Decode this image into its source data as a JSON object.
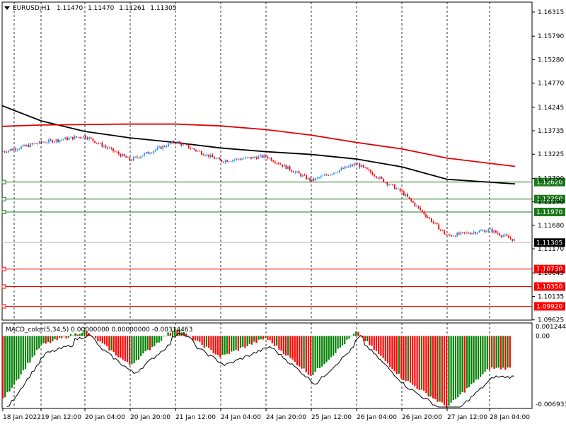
{
  "title": "EURUSD,H1",
  "ohlc": [
    "1.11470",
    "1.11470",
    "1.11261",
    "1.11305"
  ],
  "menu_icon": "triangle-down-icon",
  "colors": {
    "bull": "#1e90ff",
    "bear": "#ff0000",
    "ma_fast": "#000000",
    "ma_slow": "#e00000",
    "green_level": "#1a7a1a",
    "red_level": "#ff0000",
    "hist_up": "#008000",
    "hist_down": "#ff0000"
  },
  "price_axis": {
    "ticks": [
      "1.16315",
      "1.15790",
      "1.15280",
      "1.14770",
      "1.14245",
      "1.13735",
      "1.13225",
      "1.12700",
      "1.12190",
      "1.11680",
      "1.11170",
      "1.10645",
      "1.10135",
      "1.09625"
    ],
    "current_price": "1.11305",
    "ymin": 1.0962,
    "ymax": 1.1653
  },
  "levels": [
    {
      "label": "1.12620",
      "value": 1.1262,
      "kind": "support-green"
    },
    {
      "label": "1.12250",
      "value": 1.1225,
      "kind": "support-green"
    },
    {
      "label": "1.11970",
      "value": 1.1197,
      "kind": "support-green"
    },
    {
      "label": "1.10730",
      "value": 1.1073,
      "kind": "target-red"
    },
    {
      "label": "1.10350",
      "value": 1.1035,
      "kind": "target-red"
    },
    {
      "label": "1.09920",
      "value": 1.0992,
      "kind": "target-red"
    }
  ],
  "indicator": {
    "label": "MACD_color(5,34,5) 0.00000000 0.00000000 -0.00314463",
    "ticks": [
      "0.0012441",
      "0.00",
      "-0.006933"
    ],
    "vmax": 0.0012441,
    "vmin": -0.006933
  },
  "time_axis": [
    "18 Jan 2022",
    "19 Jan 12:00",
    "20 Jan 04:00",
    "20 Jan 20:00",
    "21 Jan 12:00",
    "24 Jan 04:00",
    "24 Jan 20:00",
    "25 Jan 12:00",
    "26 Jan 04:00",
    "26 Jan 20:00",
    "27 Jan 12:00",
    "28 Jan 04:00"
  ],
  "chart_data": [
    {
      "type": "candlestick",
      "symbol": "EURUSD",
      "timeframe": "H1",
      "ylim": [
        1.0962,
        1.1653
      ],
      "close_path": [
        {
          "t": "18 Jan 2022",
          "close": 1.1328
        },
        {
          "t": "19 Jan 12:00",
          "close": 1.1348
        },
        {
          "t": "20 Jan 04:00",
          "close": 1.1362
        },
        {
          "t": "20 Jan 20:00",
          "close": 1.131
        },
        {
          "t": "21 Jan 12:00",
          "close": 1.135
        },
        {
          "t": "24 Jan 04:00",
          "close": 1.1308
        },
        {
          "t": "24 Jan 20:00",
          "close": 1.1318
        },
        {
          "t": "25 Jan 12:00",
          "close": 1.1265
        },
        {
          "t": "26 Jan 04:00",
          "close": 1.1302
        },
        {
          "t": "26 Jan 20:00",
          "close": 1.124
        },
        {
          "t": "27 Jan 12:00",
          "close": 1.1145
        },
        {
          "t": "28 Jan 04:00",
          "close": 1.1158
        }
      ],
      "moving_averages": [
        {
          "color": "black",
          "values": [
            1.1428,
            1.1395,
            1.1372,
            1.1358,
            1.1348,
            1.1336,
            1.1328,
            1.1322,
            1.1312,
            1.1295,
            1.1268,
            1.1258
          ]
        },
        {
          "color": "red",
          "values": [
            1.1383,
            1.1386,
            1.1387,
            1.1388,
            1.1388,
            1.1384,
            1.1376,
            1.1364,
            1.1348,
            1.1334,
            1.1314,
            1.1296
          ]
        }
      ]
    },
    {
      "type": "bar",
      "name": "MACD_color(5,34,5)",
      "categories": [
        "18 Jan 2022",
        "19 Jan 12:00",
        "20 Jan 04:00",
        "20 Jan 20:00",
        "21 Jan 12:00",
        "24 Jan 04:00",
        "24 Jan 20:00",
        "25 Jan 12:00",
        "26 Jan 04:00",
        "26 Jan 20:00",
        "27 Jan 12:00",
        "28 Jan 04:00"
      ],
      "values": [
        -0.0062,
        -0.0009,
        0.0005,
        -0.0028,
        0.0008,
        -0.002,
        -0.0002,
        -0.0038,
        0.0004,
        -0.004,
        -0.0068,
        -0.0031
      ],
      "ylim": [
        -0.006933,
        0.0012441
      ]
    }
  ]
}
